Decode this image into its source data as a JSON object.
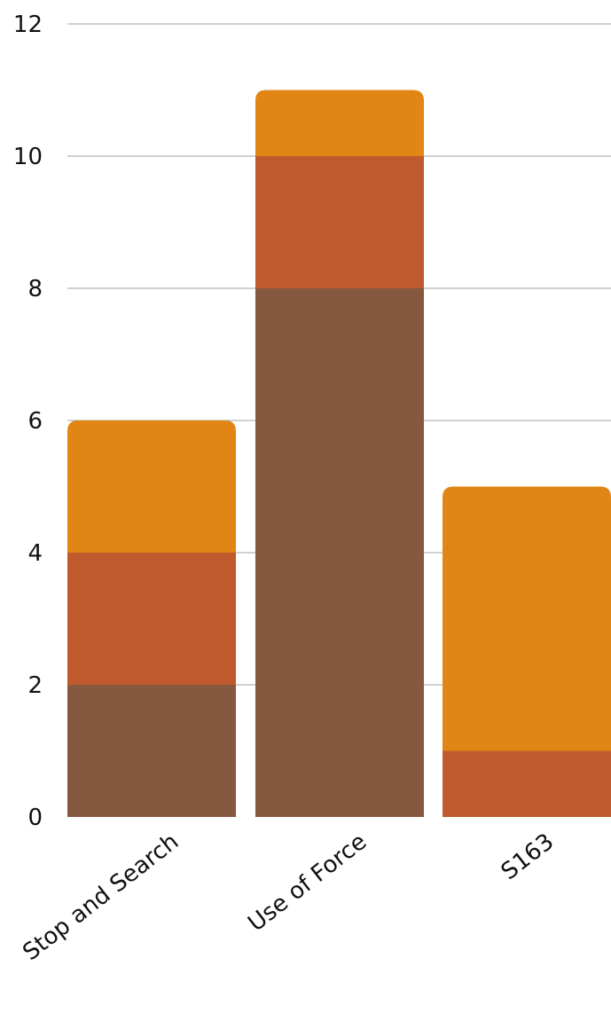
{
  "chart_data": {
    "type": "bar",
    "stacked": true,
    "title": "",
    "xlabel": "",
    "ylabel": "",
    "categories": [
      "Stop and Search",
      "Use of Force",
      "S163"
    ],
    "series": [
      {
        "color": "#875840",
        "values": [
          2,
          8,
          0
        ]
      },
      {
        "color": "#BE5A2D",
        "values": [
          2,
          2,
          1
        ]
      },
      {
        "color": "#E18514",
        "values": [
          2,
          1,
          4
        ]
      }
    ],
    "ylim": [
      0,
      12
    ],
    "yticks": [
      0,
      2,
      4,
      6,
      8,
      10,
      12
    ],
    "grid": true,
    "legend": "none"
  }
}
